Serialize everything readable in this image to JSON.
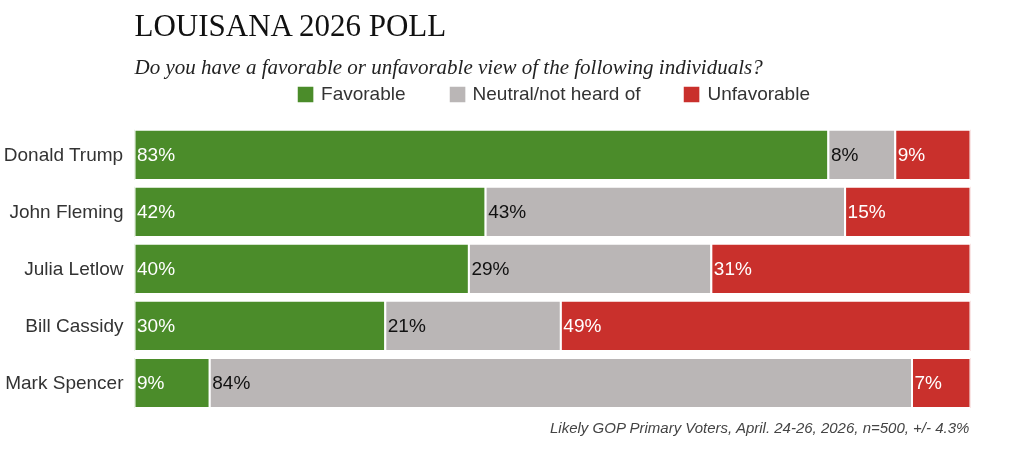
{
  "chart_data": {
    "type": "bar",
    "orientation": "horizontal",
    "stacked": true,
    "title": "LOUISANA 2026 POLL",
    "subtitle": "Do you have a favorable or unfavorable view of the following individuals?",
    "categories": [
      "Donald Trump",
      "John Fleming",
      "Julia Letlow",
      "Bill Cassidy",
      "Mark Spencer"
    ],
    "series": [
      {
        "name": "Favorable",
        "color": "#4b8c2a",
        "values": [
          83,
          42,
          40,
          30,
          9
        ],
        "value_labels": [
          "83%",
          "42%",
          "40%",
          "30%",
          "9%"
        ]
      },
      {
        "name": "Neutral/not heard of",
        "color": "#bab6b6",
        "values": [
          8,
          43,
          29,
          21,
          84
        ],
        "value_labels": [
          "8%",
          "43%",
          "29%",
          "21%",
          "84%"
        ]
      },
      {
        "name": "Unfavorable",
        "color": "#c9302c",
        "values": [
          9,
          15,
          31,
          49,
          7
        ],
        "value_labels": [
          "9%",
          "15%",
          "31%",
          "49%",
          "7%"
        ]
      }
    ],
    "legend": "top",
    "grid": false,
    "tick_labels": "y",
    "annotations": [
      "Likely GOP Primary Voters, April. 24-26, 2026, n=500, +/- 4.3%"
    ]
  }
}
